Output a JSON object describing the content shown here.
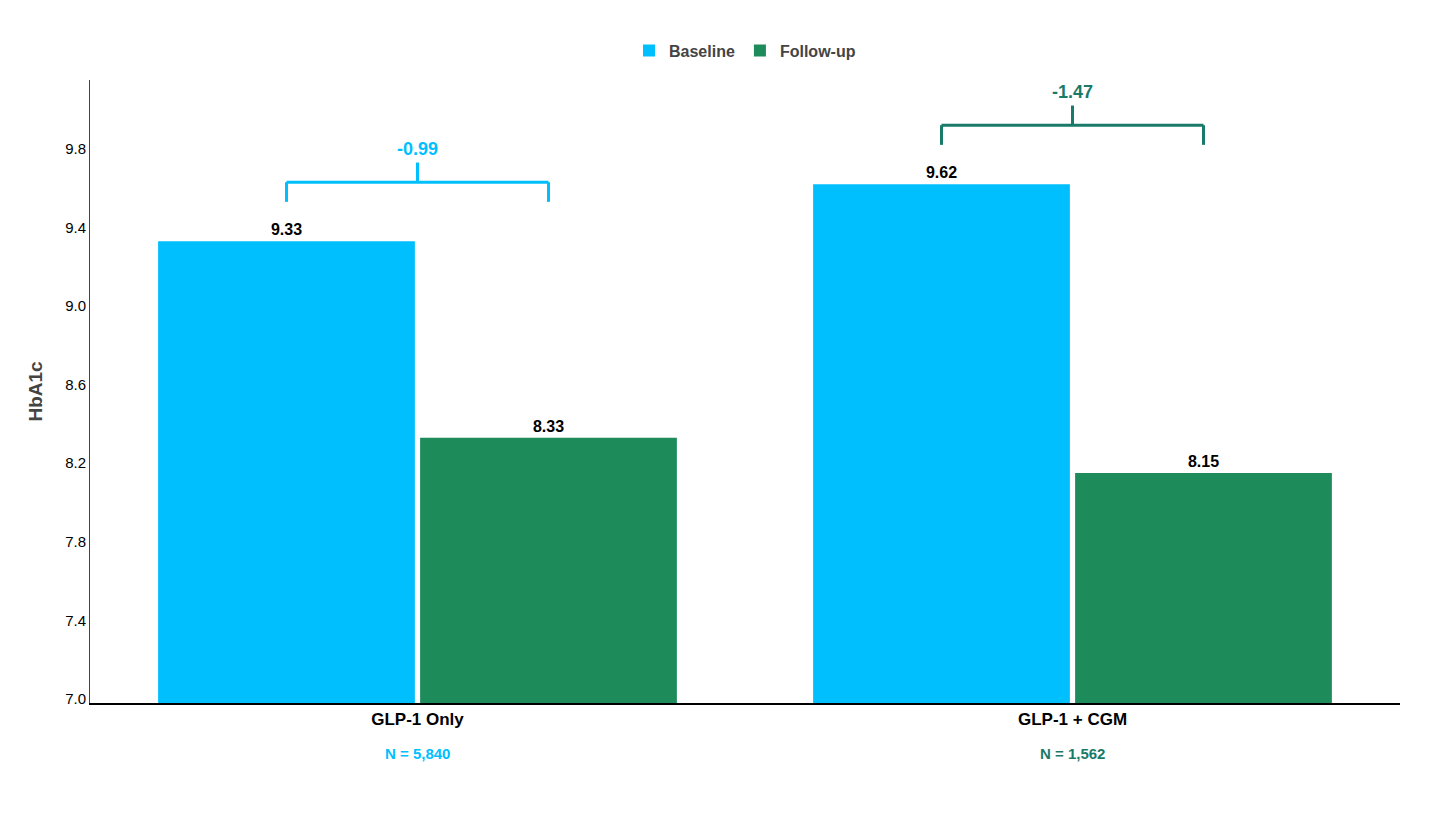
{
  "chart_data": {
    "type": "bar",
    "categories": [
      "GLP-1 Only",
      "GLP-1 + CGM"
    ],
    "series": [
      {
        "name": "Baseline",
        "color": "#00BFFF",
        "values": [
          9.33,
          9.62
        ]
      },
      {
        "name": "Follow-up",
        "color": "#1E8B5A",
        "values": [
          8.33,
          8.15
        ]
      }
    ],
    "ylabel": "HbA1c",
    "ylim": [
      6.98,
      10.15
    ],
    "yticks": [
      {
        "value": 7.0,
        "label": "7.0"
      },
      7.4,
      7.8,
      8.2,
      8.6,
      {
        "value": 9.0,
        "label": "9.0"
      },
      9.4,
      9.8
    ],
    "grid": false,
    "legend": "top",
    "data_labels": true,
    "annotations": [
      {
        "text": "-0.99",
        "color": "#00BFFF"
      },
      {
        "text": "-1.47",
        "color": "#1A7A6A"
      }
    ],
    "n_labels": [
      {
        "text": "N = 5,840",
        "color": "#00BFFF"
      },
      {
        "text": "N = 1,562",
        "color": "#1A7A6A"
      }
    ]
  }
}
